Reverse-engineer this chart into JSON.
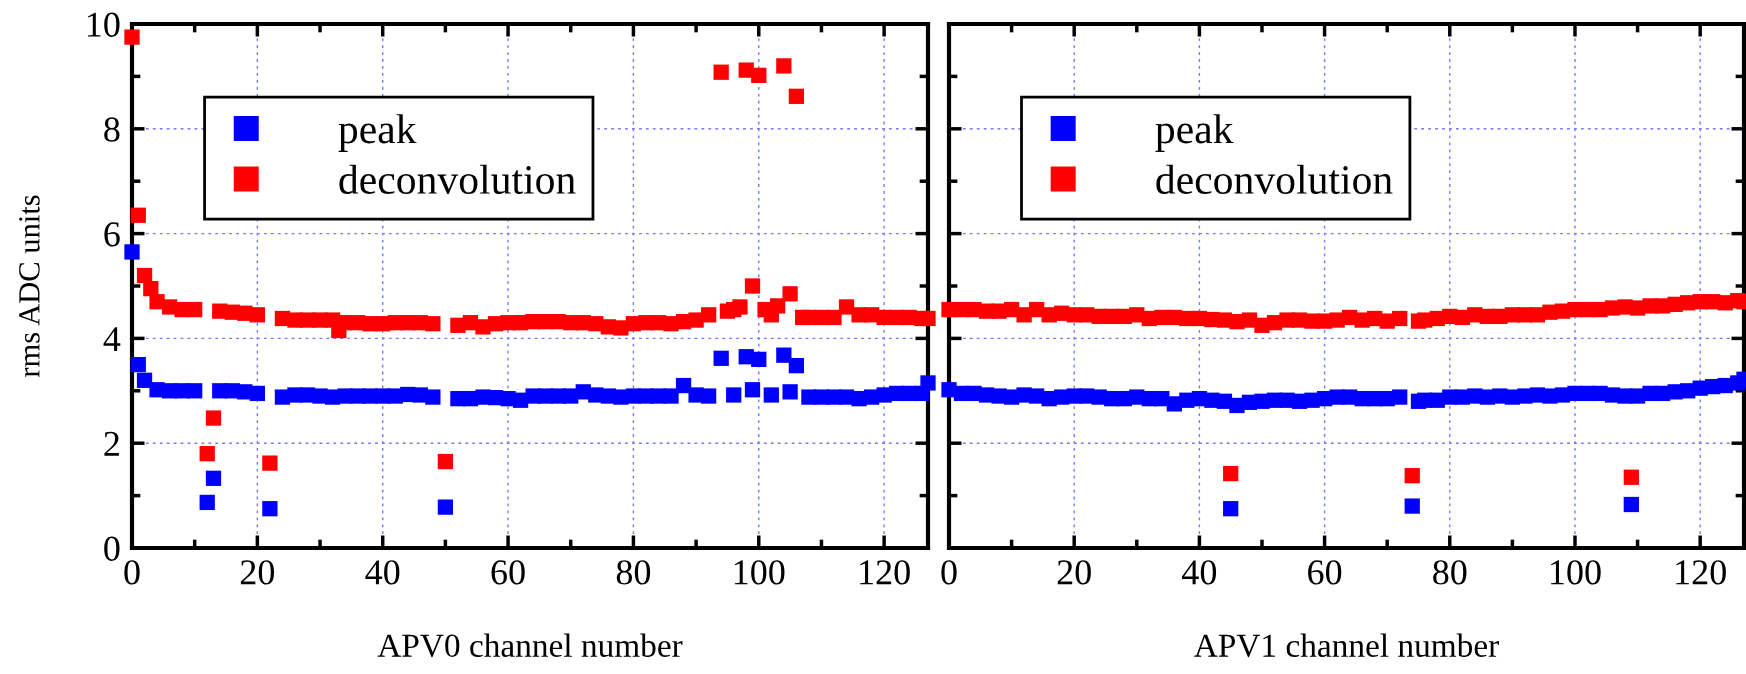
{
  "chart_data": [
    {
      "type": "scatter",
      "xlabel": "APV0 channel number",
      "ylabel": "rms ADC units",
      "marker": "square",
      "grid": true,
      "legend": "top left",
      "xlim": [
        0,
        127
      ],
      "ylim": [
        0,
        10
      ],
      "xticks": [
        0,
        {
          "value": 10,
          "label": null
        },
        20,
        {
          "value": 30,
          "label": null
        },
        40,
        {
          "value": 50,
          "label": null
        },
        60,
        {
          "value": 70,
          "label": null
        },
        80,
        {
          "value": 90,
          "label": null
        },
        100,
        {
          "value": 110,
          "label": null
        },
        120
      ],
      "yticks": [
        0,
        {
          "value": 1,
          "label": null
        },
        2,
        {
          "value": 3,
          "label": null
        },
        4,
        {
          "value": 5,
          "label": null
        },
        6,
        {
          "value": 7,
          "label": null
        },
        8,
        {
          "value": 9,
          "label": null
        },
        10
      ],
      "series": [
        {
          "name": "peak",
          "color": "#0000ff",
          "x": [
            0,
            1,
            2,
            4,
            6,
            8,
            10,
            12,
            13,
            14,
            16,
            18,
            20,
            22,
            24,
            26,
            28,
            30,
            32,
            34,
            36,
            38,
            40,
            42,
            44,
            46,
            48,
            50,
            52,
            54,
            56,
            58,
            60,
            62,
            64,
            66,
            68,
            70,
            72,
            74,
            76,
            78,
            80,
            82,
            84,
            86,
            88,
            90,
            92,
            94,
            96,
            98,
            99,
            100,
            102,
            104,
            105,
            106,
            108,
            110,
            112,
            114,
            116,
            118,
            120,
            122,
            124,
            126,
            127
          ],
          "values": [
            5.65,
            3.5,
            3.2,
            3.02,
            3.0,
            3.0,
            3.0,
            0.87,
            1.33,
            3.0,
            3.0,
            2.98,
            2.95,
            0.75,
            2.88,
            2.92,
            2.92,
            2.9,
            2.88,
            2.9,
            2.9,
            2.9,
            2.9,
            2.9,
            2.93,
            2.92,
            2.88,
            0.78,
            2.85,
            2.85,
            2.88,
            2.87,
            2.85,
            2.82,
            2.9,
            2.9,
            2.9,
            2.9,
            2.98,
            2.92,
            2.9,
            2.88,
            2.9,
            2.9,
            2.9,
            2.9,
            3.1,
            2.92,
            2.9,
            3.62,
            2.92,
            3.65,
            3.02,
            3.6,
            2.92,
            3.68,
            2.98,
            3.48,
            2.88,
            2.88,
            2.88,
            2.88,
            2.85,
            2.88,
            2.92,
            2.95,
            2.95,
            2.95,
            3.15
          ]
        },
        {
          "name": "deconvolution",
          "color": "#ff0000",
          "x": [
            0,
            1,
            2,
            3,
            4,
            6,
            8,
            10,
            12,
            13,
            14,
            16,
            18,
            20,
            22,
            24,
            26,
            28,
            30,
            32,
            33,
            34,
            36,
            38,
            40,
            42,
            44,
            46,
            48,
            50,
            52,
            54,
            56,
            58,
            60,
            62,
            64,
            66,
            68,
            70,
            72,
            74,
            76,
            78,
            80,
            82,
            84,
            86,
            88,
            90,
            92,
            94,
            95,
            96,
            97,
            98,
            99,
            100,
            101,
            102,
            103,
            104,
            105,
            106,
            107,
            108,
            110,
            112,
            114,
            116,
            118,
            120,
            122,
            124,
            126,
            127
          ],
          "values": [
            9.75,
            6.35,
            5.2,
            4.95,
            4.7,
            4.6,
            4.55,
            4.55,
            1.8,
            2.48,
            4.52,
            4.5,
            4.48,
            4.45,
            1.62,
            4.38,
            4.35,
            4.35,
            4.35,
            4.35,
            4.15,
            4.3,
            4.3,
            4.28,
            4.28,
            4.3,
            4.3,
            4.3,
            4.28,
            1.65,
            4.25,
            4.3,
            4.22,
            4.28,
            4.3,
            4.3,
            4.32,
            4.32,
            4.32,
            4.3,
            4.3,
            4.28,
            4.22,
            4.2,
            4.28,
            4.3,
            4.3,
            4.28,
            4.32,
            4.35,
            4.45,
            9.08,
            4.52,
            4.55,
            4.6,
            9.12,
            5.0,
            9.02,
            4.55,
            4.45,
            4.62,
            9.2,
            4.85,
            8.62,
            4.4,
            4.4,
            4.4,
            4.4,
            4.6,
            4.45,
            4.45,
            4.4,
            4.4,
            4.4,
            4.38,
            4.38
          ]
        }
      ]
    },
    {
      "type": "scatter",
      "xlabel": "APV1 channel number",
      "marker": "square",
      "grid": true,
      "legend": "top left",
      "tick_labels": "x",
      "xlim": [
        0,
        127
      ],
      "ylim": [
        0,
        10
      ],
      "xticks": [
        0,
        {
          "value": 10,
          "label": null
        },
        20,
        {
          "value": 30,
          "label": null
        },
        40,
        {
          "value": 50,
          "label": null
        },
        60,
        {
          "value": 70,
          "label": null
        },
        80,
        {
          "value": 90,
          "label": null
        },
        100,
        {
          "value": 110,
          "label": null
        },
        120
      ],
      "yticks": [
        0,
        {
          "value": 1,
          "label": null
        },
        2,
        {
          "value": 3,
          "label": null
        },
        4,
        {
          "value": 5,
          "label": null
        },
        6,
        {
          "value": 7,
          "label": null
        },
        8,
        {
          "value": 9,
          "label": null
        },
        10
      ],
      "series": [
        {
          "name": "peak",
          "color": "#0000ff",
          "x": [
            0,
            2,
            4,
            6,
            8,
            10,
            12,
            14,
            16,
            18,
            20,
            22,
            24,
            26,
            28,
            30,
            32,
            34,
            36,
            38,
            40,
            42,
            44,
            45,
            46,
            48,
            50,
            52,
            54,
            56,
            58,
            60,
            62,
            64,
            66,
            68,
            70,
            72,
            74,
            75,
            76,
            78,
            80,
            82,
            84,
            86,
            88,
            90,
            92,
            94,
            96,
            98,
            100,
            102,
            104,
            106,
            108,
            109,
            110,
            112,
            114,
            116,
            118,
            120,
            122,
            124,
            126,
            127
          ],
          "values": [
            3.02,
            2.95,
            2.95,
            2.92,
            2.9,
            2.88,
            2.92,
            2.9,
            2.85,
            2.88,
            2.9,
            2.9,
            2.88,
            2.85,
            2.85,
            2.88,
            2.85,
            2.85,
            2.75,
            2.82,
            2.85,
            2.82,
            2.8,
            0.75,
            2.72,
            2.78,
            2.8,
            2.82,
            2.82,
            2.8,
            2.82,
            2.85,
            2.88,
            2.88,
            2.85,
            2.85,
            2.85,
            2.88,
            0.8,
            2.8,
            2.82,
            2.82,
            2.88,
            2.88,
            2.9,
            2.88,
            2.9,
            2.88,
            2.9,
            2.92,
            2.9,
            2.92,
            2.95,
            2.95,
            2.95,
            2.92,
            2.9,
            0.83,
            2.9,
            2.95,
            2.95,
            2.98,
            3.0,
            3.05,
            3.08,
            3.1,
            3.15,
            3.22
          ]
        },
        {
          "name": "deconvolution",
          "color": "#ff0000",
          "x": [
            0,
            2,
            4,
            6,
            8,
            10,
            12,
            14,
            16,
            18,
            20,
            22,
            24,
            26,
            28,
            30,
            32,
            34,
            36,
            38,
            40,
            42,
            44,
            45,
            46,
            48,
            50,
            52,
            54,
            56,
            58,
            60,
            62,
            64,
            66,
            68,
            70,
            72,
            74,
            75,
            76,
            78,
            80,
            82,
            84,
            86,
            88,
            90,
            92,
            94,
            96,
            98,
            100,
            102,
            104,
            106,
            108,
            109,
            110,
            112,
            114,
            116,
            118,
            120,
            122,
            124,
            126,
            127
          ],
          "values": [
            4.55,
            4.55,
            4.55,
            4.52,
            4.52,
            4.55,
            4.45,
            4.55,
            4.45,
            4.48,
            4.45,
            4.45,
            4.42,
            4.42,
            4.42,
            4.45,
            4.38,
            4.4,
            4.4,
            4.38,
            4.38,
            4.36,
            4.35,
            1.42,
            4.32,
            4.35,
            4.25,
            4.3,
            4.35,
            4.35,
            4.33,
            4.33,
            4.35,
            4.4,
            4.35,
            4.38,
            4.33,
            4.38,
            1.38,
            4.33,
            4.35,
            4.38,
            4.42,
            4.4,
            4.45,
            4.42,
            4.42,
            4.45,
            4.45,
            4.45,
            4.5,
            4.52,
            4.55,
            4.55,
            4.55,
            4.58,
            4.6,
            1.35,
            4.58,
            4.62,
            4.62,
            4.65,
            4.68,
            4.7,
            4.7,
            4.68,
            4.72,
            4.7
          ]
        }
      ]
    }
  ]
}
